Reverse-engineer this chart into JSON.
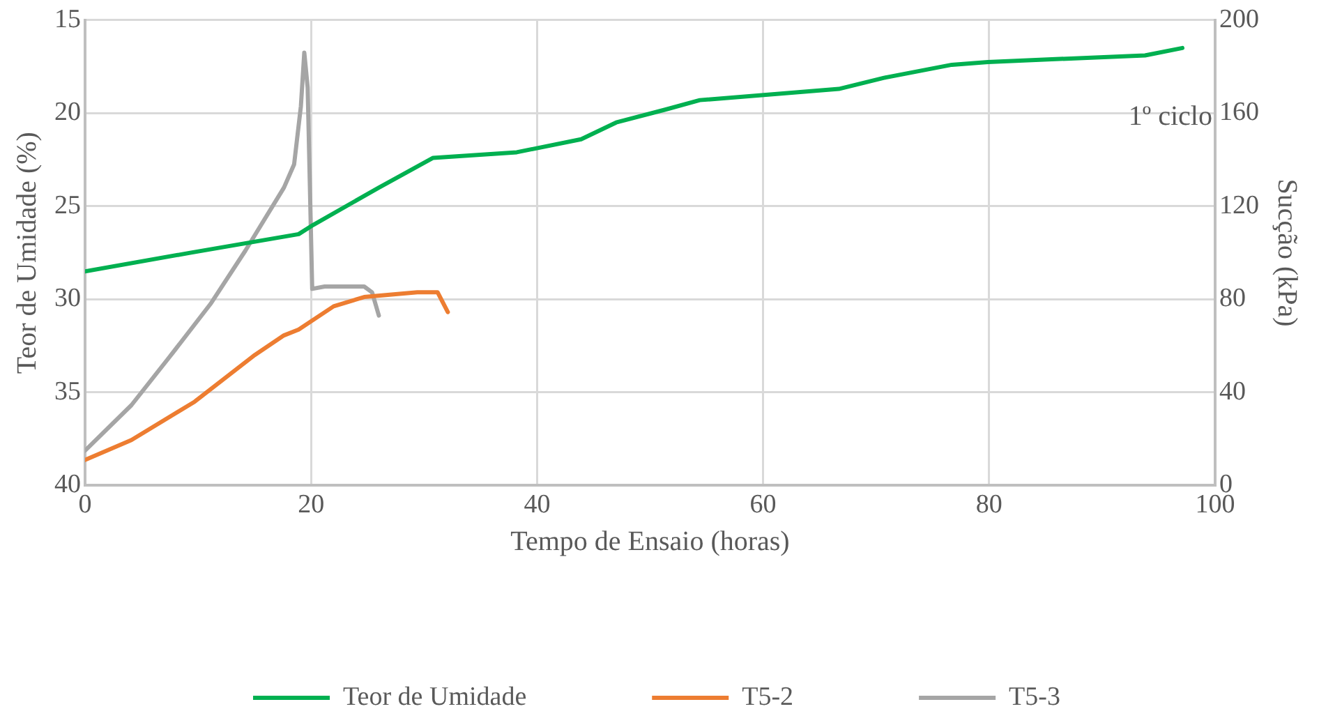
{
  "chart_data": {
    "type": "line",
    "xlabel": "Tempo de Ensaio (horas)",
    "ylabel": "Teor de Umidade (%)",
    "y2label": "Sucção (kPa)",
    "xlim": [
      0,
      100
    ],
    "xticks": [
      0,
      20,
      40,
      60,
      80,
      100
    ],
    "ylim": [
      40,
      15
    ],
    "yticks": [
      15,
      20,
      25,
      30,
      35,
      40
    ],
    "y2lim": [
      0,
      200
    ],
    "y2ticks": [
      0,
      40,
      80,
      120,
      160,
      200
    ],
    "grid": true,
    "legend": "bottom",
    "annotations": [
      "1º ciclo"
    ],
    "series": [
      {
        "name": "Teor de Umidade",
        "color": "#00b050",
        "x": [
          0,
          9.3,
          18.9,
          20.2,
          26,
          30.8,
          38.2,
          43.9,
          47,
          51.4,
          54.4,
          66.7,
          70.7,
          76.7,
          79.9,
          93.8,
          97.1
        ],
        "values": [
          28.5,
          27.5,
          26.5,
          26.0,
          24.0,
          22.4,
          22.1,
          21.4,
          20.5,
          19.8,
          19.3,
          18.7,
          18.1,
          17.4,
          17.25,
          16.9,
          16.5
        ]
      },
      {
        "name": "T5-2",
        "color": "#ed7d31",
        "axis": "y2",
        "x": [
          0,
          4.1,
          9.7,
          15,
          17.6,
          18.9,
          22,
          24.7,
          29.4,
          31.2,
          32.1
        ],
        "values": [
          11,
          19.5,
          36,
          56,
          64.5,
          67,
          77,
          81,
          83,
          83,
          74.5
        ]
      },
      {
        "name": "T5-3",
        "color": "#a5a5a5",
        "axis": "y2",
        "x": [
          0,
          4.1,
          7.6,
          11.1,
          14.2,
          17.6,
          18.5,
          19.1,
          19.4,
          19.7,
          20.1,
          21.2,
          24.7,
          25.4,
          26.0
        ],
        "values": [
          15,
          34.5,
          56,
          78,
          101,
          128,
          138,
          163,
          186,
          171,
          84.5,
          85.5,
          85.5,
          83,
          73
        ]
      }
    ]
  }
}
